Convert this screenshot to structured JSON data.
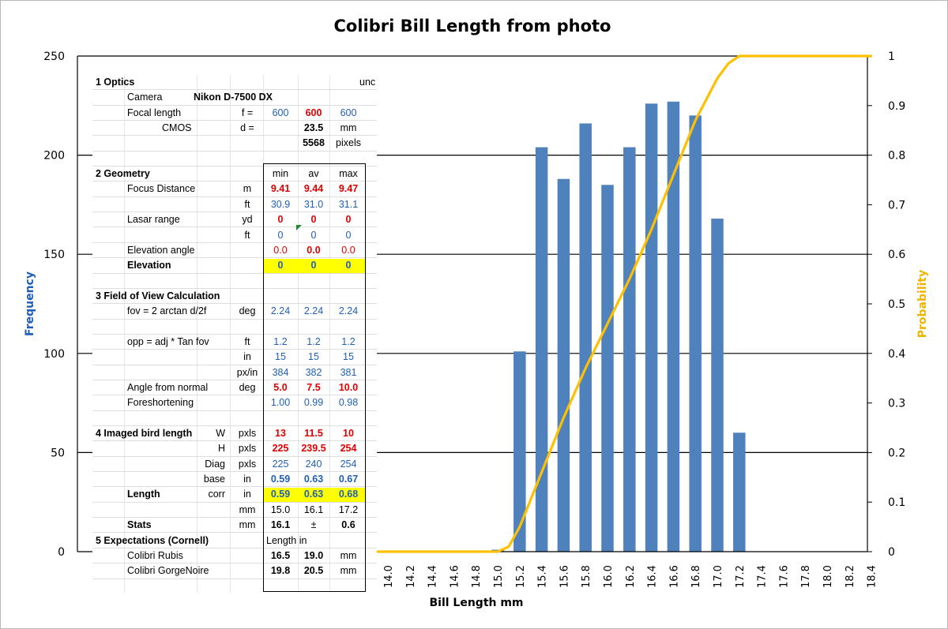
{
  "chart_data": {
    "type": "bar",
    "title": "Colibri Bill Length from photo",
    "xlabel": "Bill Length  mm",
    "ylabel": "Frequency",
    "y2label": "Probability",
    "ylim": [
      0,
      250
    ],
    "y2lim": [
      0,
      1
    ],
    "yticks": [
      "0",
      "50",
      "100",
      "150",
      "200",
      "250"
    ],
    "y2ticks": [
      "0",
      "0.1",
      "0.2",
      "0.3",
      "0.4",
      "0.5",
      "0.6",
      "0.7",
      "0.8",
      "0.9",
      "1"
    ],
    "categories": [
      "14.0",
      "14.2",
      "14.4",
      "14.6",
      "14.8",
      "15.0",
      "15.2",
      "15.4",
      "15.6",
      "15.8",
      "16.0",
      "16.2",
      "16.4",
      "16.6",
      "16.8",
      "17.0",
      "17.2",
      "17.4",
      "17.6",
      "17.8",
      "18.0",
      "18.2",
      "18.4"
    ],
    "grid": "horizontal",
    "colors": {
      "bars": "#4f81bd",
      "cumulative": "#ffc000"
    },
    "series": [
      {
        "name": "Frequency",
        "type": "bar",
        "axis": "left",
        "values": [
          0,
          0,
          0,
          0,
          0,
          1,
          101,
          204,
          188,
          216,
          185,
          204,
          226,
          227,
          220,
          168,
          60,
          0,
          0,
          0,
          0,
          0,
          0
        ]
      },
      {
        "name": "Probability",
        "type": "line",
        "axis": "right",
        "x": [
          13.2,
          14.8,
          15.0,
          15.1,
          15.2,
          15.4,
          15.6,
          15.8,
          16.0,
          16.2,
          16.4,
          16.6,
          16.8,
          17.0,
          17.1,
          17.2,
          17.4,
          18.4
        ],
        "values": [
          0.0,
          0.0,
          0.0,
          0.01,
          0.05,
          0.16,
          0.27,
          0.37,
          0.46,
          0.55,
          0.65,
          0.76,
          0.87,
          0.955,
          0.985,
          1.0,
          1.0,
          1.0
        ]
      }
    ]
  },
  "sheet": {
    "rows": [
      {
        "c1": "1 Optics",
        "c1b": true,
        "ci": "unc"
      },
      {
        "c2": "Camera",
        "c3": "Nikon D-7500 DX",
        "c3b": true
      },
      {
        "c2": "Focal length",
        "e": "f =",
        "f": "600",
        "fc": "blue",
        "g": "600",
        "gc": "red",
        "gb": true,
        "h": "600",
        "hc": "blue"
      },
      {
        "c2": "CMOS",
        "c2x": 88,
        "e": "d =",
        "g": "23.5",
        "gb": true,
        "h": "mm"
      },
      {
        "g": "5568",
        "gb": true,
        "h": "pixels"
      },
      {},
      {
        "c1": "2 Geometry",
        "c1b": true,
        "f": "min",
        "g": "av",
        "h": "max"
      },
      {
        "c2": "Focus Distance",
        "e": "m",
        "f": "9.41",
        "fc": "red",
        "fb": true,
        "g": "9.44",
        "gc": "red",
        "gb": true,
        "h": "9.47",
        "hc": "red",
        "hb": true
      },
      {
        "e": "ft",
        "f": "30.9",
        "fc": "blue",
        "g": "31.0",
        "gc": "blue",
        "h": "31.1",
        "hc": "blue"
      },
      {
        "c2": "Lasar range",
        "e": "yd",
        "f": "0",
        "fc": "red",
        "fb": true,
        "g": "0",
        "gc": "red",
        "gb": true,
        "h": "0",
        "hc": "red",
        "hb": true
      },
      {
        "e": "ft",
        "f": "0",
        "fc": "blue",
        "g": "0",
        "gc": "blue",
        "h": "0",
        "hc": "blue"
      },
      {
        "c2": "Elevation angle",
        "f": "0.0",
        "fc": "red",
        "g": "0.0",
        "gc": "red",
        "gb": true,
        "h": "0.0",
        "hc": "red"
      },
      {
        "c2": "Elevation",
        "c2b": true,
        "f": "0",
        "fc": "blue",
        "fb": true,
        "g": "0",
        "gc": "blue",
        "gb": true,
        "h": "0",
        "hc": "blue",
        "hb": true,
        "hl": true
      },
      {},
      {
        "c1": "3 Field of View Calculation",
        "c1b": true
      },
      {
        "c2": "fov = 2 arctan  d/2f",
        "e": "deg",
        "f": "2.24",
        "fc": "blue",
        "g": "2.24",
        "gc": "blue",
        "h": "2.24",
        "hc": "blue"
      },
      {},
      {
        "c2": "opp = adj * Tan fov",
        "e": "ft",
        "f": "1.2",
        "fc": "blue",
        "g": "1.2",
        "gc": "blue",
        "h": "1.2",
        "hc": "blue"
      },
      {
        "e": "in",
        "f": "15",
        "fc": "blue",
        "g": "15",
        "gc": "blue",
        "h": "15",
        "hc": "blue"
      },
      {
        "e": "px/in",
        "f": "384",
        "fc": "blue",
        "g": "382",
        "gc": "blue",
        "h": "381",
        "hc": "blue"
      },
      {
        "c2": "Angle from normal",
        "e": "deg",
        "f": "5.0",
        "fc": "red",
        "fb": true,
        "g": "7.5",
        "gc": "red",
        "gb": true,
        "h": "10.0",
        "hc": "red",
        "hb": true
      },
      {
        "c2": "Foreshortening",
        "f": "1.00",
        "fc": "blue",
        "g": "0.99",
        "gc": "blue",
        "h": "0.98",
        "hc": "blue"
      },
      {},
      {
        "c1": "4 Imaged bird length",
        "c1b": true,
        "d": "W",
        "e": "pxls",
        "f": "13",
        "fc": "red",
        "fb": true,
        "g": "11.5",
        "gc": "red",
        "gb": true,
        "h": "10",
        "hc": "red",
        "hb": true
      },
      {
        "d": "H",
        "e": "pxls",
        "f": "225",
        "fc": "red",
        "fb": true,
        "g": "239.5",
        "gc": "red",
        "gb": true,
        "h": "254",
        "hc": "red",
        "hb": true
      },
      {
        "d": "Diag",
        "e": "pxls",
        "f": "225",
        "fc": "blue",
        "g": "240",
        "gc": "blue",
        "h": "254",
        "hc": "blue"
      },
      {
        "d": "base",
        "e": "in",
        "f": "0.59",
        "fc": "blue",
        "fb": true,
        "g": "0.63",
        "gc": "blue",
        "gb": true,
        "h": "0.67",
        "hc": "blue",
        "hb": true
      },
      {
        "c2": "Length",
        "c2b": true,
        "d": "corr",
        "e": "in",
        "f": "0.59",
        "fc": "blue",
        "fb": true,
        "g": "0.63",
        "gc": "blue",
        "gb": true,
        "h": "0.68",
        "hc": "blue",
        "hb": true,
        "hl": true
      },
      {
        "e": "mm",
        "f": "15.0",
        "g": "16.1",
        "h": "17.2"
      },
      {
        "c2": "Stats",
        "c2b": true,
        "e": "mm",
        "f": "16.1",
        "fb": true,
        "g": "±",
        "h": "0.6",
        "hb": true
      },
      {
        "c1": "5 Expectations (Cornell)",
        "c1b": true,
        "f": "Length in"
      },
      {
        "c2": "Colibri Rubis",
        "f": "16.5",
        "fb": true,
        "g": "19.0",
        "gb": true,
        "h": "mm"
      },
      {
        "c2": "Colibri GorgeNoire",
        "f": "19.8",
        "fb": true,
        "g": "20.5",
        "gb": true,
        "h": "mm"
      }
    ]
  }
}
